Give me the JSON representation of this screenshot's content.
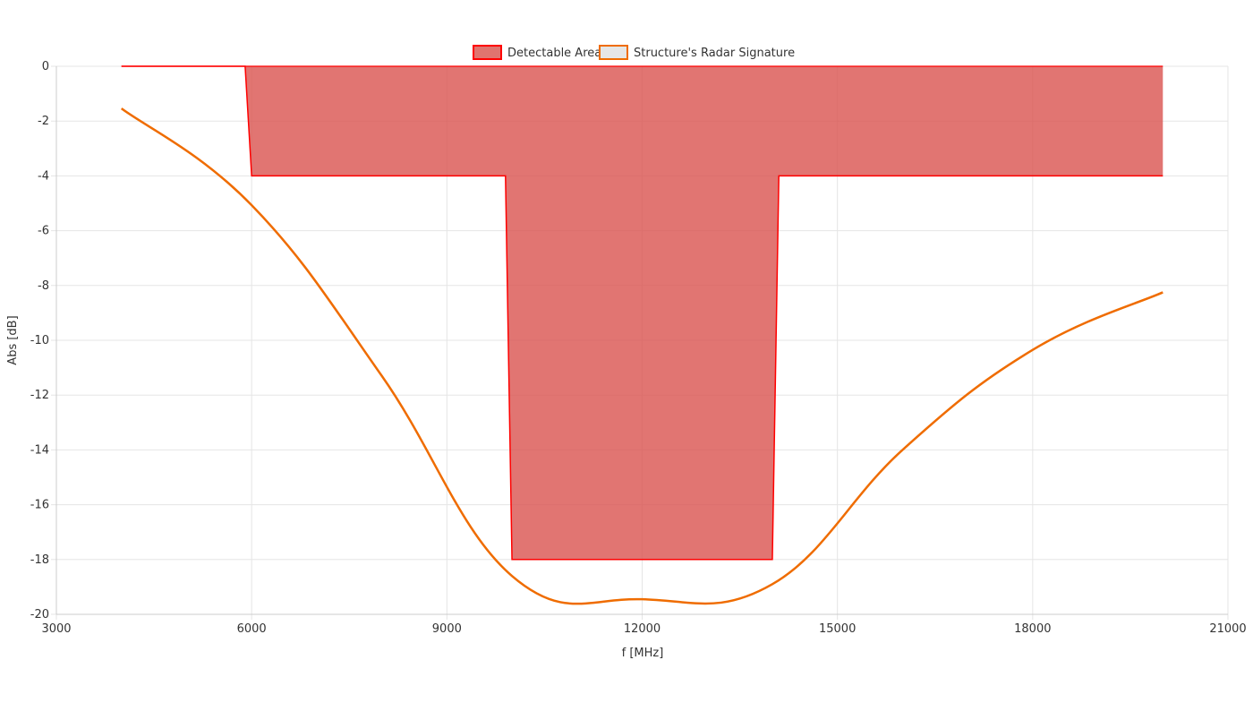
{
  "chart_data": {
    "type": "line",
    "title": "",
    "xlabel": "f [MHz]",
    "ylabel": "Abs [dB]",
    "xlim": [
      3000,
      21000
    ],
    "ylim": [
      -20,
      0
    ],
    "xticks": [
      3000,
      6000,
      9000,
      12000,
      15000,
      18000,
      21000
    ],
    "yticks": [
      0,
      -2,
      -4,
      -6,
      -8,
      -10,
      -12,
      -14,
      -16,
      -18,
      -20
    ],
    "grid": true,
    "legend_placement": "top",
    "series": [
      {
        "name": "Detectable Area",
        "kind": "filled-area",
        "color": "#ff0000",
        "fill": "#d9534f",
        "upper": [
          [
            4000,
            0
          ],
          [
            20000,
            0
          ]
        ],
        "x": [
          4000,
          5900,
          6000,
          9900,
          10000,
          14000,
          14100,
          20000
        ],
        "y": [
          0,
          0,
          -4,
          -4,
          -18,
          -18,
          -4,
          -4
        ]
      },
      {
        "name": "Structure's Radar Signature",
        "kind": "line",
        "color": "#ef6c00",
        "x": [
          4000,
          6000,
          8000,
          10000,
          12000,
          14000,
          16000,
          18000,
          20000
        ],
        "y": [
          -1.54,
          -5.07,
          -11.3,
          -18.6,
          -19.45,
          -18.9,
          -14.0,
          -10.35,
          -8.25
        ]
      }
    ]
  }
}
